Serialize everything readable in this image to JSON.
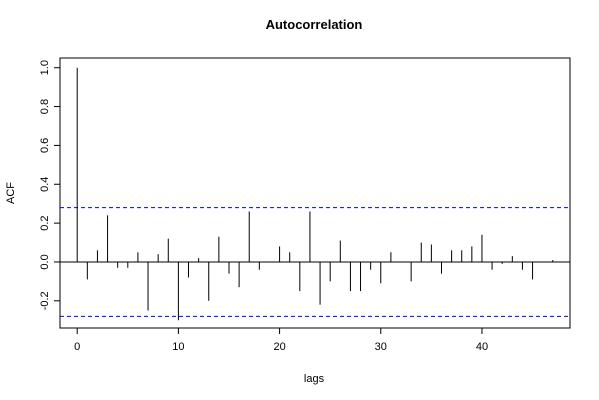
{
  "chart_data": {
    "type": "bar",
    "title": "Autocorrelation",
    "xlabel": "lags",
    "ylabel": "ACF",
    "xlim": [
      -1.7,
      48.7
    ],
    "ylim": [
      -0.34,
      1.05
    ],
    "xticks": [
      0,
      10,
      20,
      30,
      40
    ],
    "yticks": [
      -0.2,
      0.0,
      0.2,
      0.4,
      0.6,
      0.8,
      1.0
    ],
    "grid": false,
    "confidence_band": [
      0.28,
      -0.28
    ],
    "band_color": "#0000ff",
    "lags": [
      0,
      1,
      2,
      3,
      4,
      5,
      6,
      7,
      8,
      9,
      10,
      11,
      12,
      13,
      14,
      15,
      16,
      17,
      18,
      19,
      20,
      21,
      22,
      23,
      24,
      25,
      26,
      27,
      28,
      29,
      30,
      31,
      32,
      33,
      34,
      35,
      36,
      37,
      38,
      39,
      40,
      41,
      42,
      43,
      44,
      45,
      46,
      47
    ],
    "values": [
      1.0,
      -0.09,
      0.06,
      0.24,
      -0.03,
      -0.03,
      0.05,
      -0.25,
      0.04,
      0.12,
      -0.3,
      -0.08,
      0.02,
      -0.2,
      0.13,
      -0.06,
      -0.13,
      0.26,
      -0.04,
      0.0,
      0.08,
      0.05,
      -0.15,
      0.26,
      -0.22,
      -0.1,
      0.11,
      -0.15,
      -0.15,
      -0.04,
      -0.11,
      0.05,
      0.0,
      -0.1,
      0.1,
      0.09,
      -0.06,
      0.06,
      0.06,
      0.08,
      0.14,
      -0.04,
      -0.01,
      0.03,
      -0.04,
      -0.09,
      0.0,
      0.01
    ]
  }
}
